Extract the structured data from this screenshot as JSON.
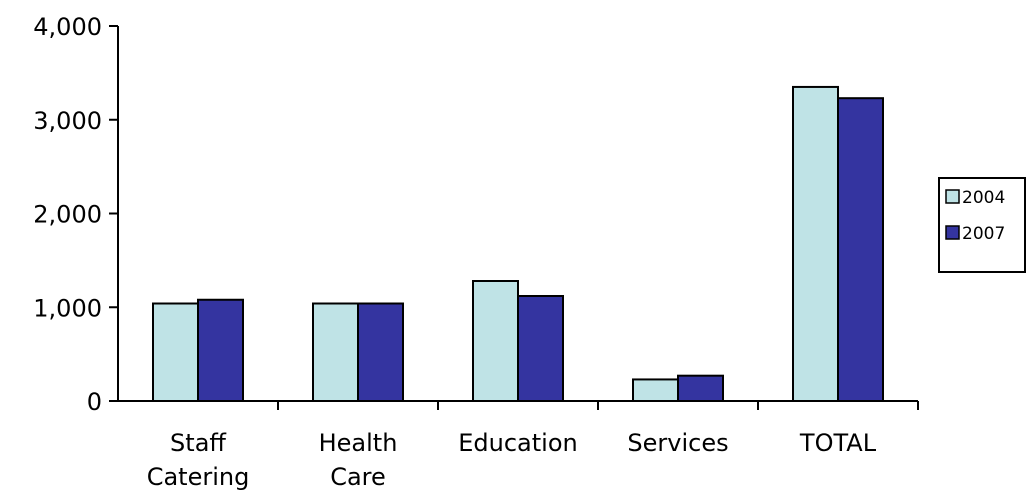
{
  "chart_data": {
    "type": "bar",
    "title": "",
    "xlabel": "",
    "ylabel": "",
    "ylim": [
      0,
      4000
    ],
    "yticks": [
      "0",
      "1,000",
      "2,000",
      "3,000",
      "4,000"
    ],
    "ytick_values": [
      0,
      1000,
      2000,
      3000,
      4000
    ],
    "categories": [
      [
        "Staff",
        "Catering"
      ],
      [
        "Health",
        "Care"
      ],
      [
        "Education"
      ],
      [
        "Services"
      ],
      [
        "TOTAL"
      ]
    ],
    "series": [
      {
        "name": "2004",
        "color": "#BFE3E6",
        "values": [
          1040,
          1040,
          1280,
          230,
          3350
        ]
      },
      {
        "name": "2007",
        "color": "#3434A0",
        "values": [
          1080,
          1040,
          1120,
          270,
          3230
        ]
      }
    ],
    "grid": false,
    "legend": {
      "placement": "right",
      "entries": [
        "2004",
        "2007"
      ]
    }
  }
}
